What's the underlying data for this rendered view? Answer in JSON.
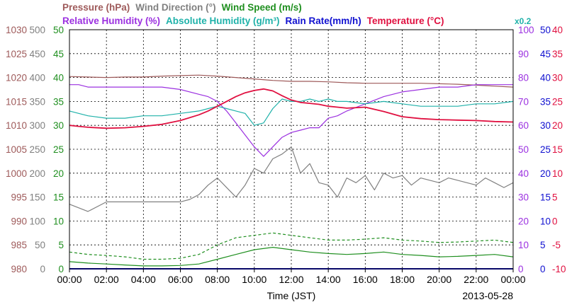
{
  "chart_data": {
    "type": "line",
    "x_axis": {
      "label": "Time (JST)",
      "date": "2013-05-28",
      "range_hours": [
        0,
        24
      ],
      "ticks": [
        "00:00",
        "02:00",
        "04:00",
        "06:00",
        "08:00",
        "10:00",
        "12:00",
        "14:00",
        "16:00",
        "18:00",
        "20:00",
        "22:00",
        "00:00"
      ]
    },
    "legend_row1": [
      {
        "text": "Pressure (hPa)",
        "color": "#9e5a5a"
      },
      {
        "text": "Wind Direction (°)",
        "color": "#808080"
      },
      {
        "text": "Wind Speed (m/s)",
        "color": "#1f8f1f"
      }
    ],
    "legend_row2": [
      {
        "text": "Relative Humidity (%)",
        "color": "#9b30e0"
      },
      {
        "text": "Absolute Humidity (g/m³)",
        "color": "#20b2aa"
      },
      {
        "text": "Rain Rate(mm/h)",
        "color": "#1010d0"
      },
      {
        "text": "Temperature (°C)",
        "color": "#e01040"
      }
    ],
    "rain_note": {
      "text": "x0.2",
      "color": "#20b2aa"
    },
    "grid": true,
    "axes": {
      "pressure": {
        "color": "#9e5a5a",
        "range": [
          980,
          1030
        ],
        "ticks": [
          "980",
          "985",
          "990",
          "995",
          "1000",
          "1005",
          "1010",
          "1015",
          "1020",
          "1025",
          "1030"
        ]
      },
      "wind_direction": {
        "color": "#808080",
        "range": [
          0,
          500
        ],
        "ticks": [
          "0",
          "50",
          "100",
          "150",
          "200",
          "250",
          "300",
          "350",
          "400",
          "450",
          "500"
        ]
      },
      "wind_speed": {
        "color": "#1f8f1f",
        "range": [
          0,
          50
        ],
        "ticks": [
          "0",
          "5",
          "10",
          "15",
          "20",
          "25",
          "30",
          "35",
          "40",
          "45",
          "50"
        ]
      },
      "humidity": {
        "color": "#9b30e0",
        "range": [
          0,
          100
        ],
        "ticks": [
          "0",
          "10",
          "20",
          "30",
          "40",
          "50",
          "60",
          "70",
          "80",
          "90",
          "100"
        ]
      },
      "rain": {
        "color": "#1010d0",
        "range": [
          0,
          50
        ],
        "ticks": [
          "0",
          "5",
          "10",
          "15",
          "20",
          "25",
          "30",
          "35",
          "40",
          "45",
          "50"
        ]
      },
      "temperature": {
        "color": "#e01040",
        "range": [
          -10,
          40
        ],
        "ticks": [
          "-10",
          "-5",
          "0",
          "5",
          "10",
          "15",
          "20",
          "25",
          "30",
          "35",
          "40"
        ]
      }
    },
    "series": [
      {
        "name": "Pressure (hPa)",
        "axis": "pressure",
        "color": "#9e5a5a",
        "x": [
          0,
          1,
          2,
          3,
          4,
          5,
          6,
          7,
          8,
          9,
          10,
          11,
          12,
          13,
          14,
          15,
          16,
          17,
          18,
          19,
          20,
          21,
          22,
          23,
          24
        ],
        "y": [
          1020.2,
          1020.1,
          1020.0,
          1020.1,
          1020.1,
          1020.3,
          1020.4,
          1020.5,
          1020.3,
          1020.0,
          1019.7,
          1019.4,
          1019.2,
          1019.2,
          1019.1,
          1018.9,
          1018.8,
          1018.8,
          1018.8,
          1018.8,
          1018.7,
          1018.6,
          1018.4,
          1018.2,
          1018.0
        ]
      },
      {
        "name": "Relative Humidity (%)",
        "axis": "humidity",
        "color": "#9b30e0",
        "x": [
          0,
          0.5,
          1,
          2,
          3,
          4,
          5,
          6,
          7,
          7.5,
          8,
          8.5,
          9,
          9.5,
          10,
          10.5,
          11,
          11.5,
          12,
          12.5,
          13,
          13.5,
          14,
          14.5,
          15,
          16,
          17,
          18,
          19,
          20,
          21,
          22,
          23,
          24
        ],
        "y": [
          77,
          77,
          76,
          76,
          76,
          76,
          76,
          75,
          73,
          72,
          70,
          66,
          61,
          56,
          51,
          47,
          51,
          55,
          57,
          58,
          59,
          59,
          63,
          64,
          66,
          69,
          72,
          74,
          75,
          76,
          76,
          77,
          77,
          77
        ]
      },
      {
        "name": "Absolute Humidity (g/m³)",
        "axis": "humidity",
        "color": "#20b2aa",
        "x": [
          0,
          0.5,
          1,
          2,
          3,
          4,
          5,
          6,
          7,
          7.5,
          8,
          8.5,
          9,
          9.5,
          10,
          10.5,
          11,
          11.5,
          12,
          12.5,
          13,
          13.5,
          14,
          14.5,
          15,
          16,
          17,
          18,
          19,
          20,
          21,
          22,
          23,
          24
        ],
        "y": [
          66,
          65,
          64,
          63,
          63,
          64,
          64,
          65,
          66,
          67,
          68,
          67,
          66,
          65,
          60,
          61,
          67,
          71,
          70,
          70,
          71,
          70,
          71,
          70,
          70,
          69,
          70,
          69,
          68,
          68,
          68,
          69,
          69,
          70
        ]
      },
      {
        "name": "Temperature (°C)",
        "axis": "temperature",
        "color": "#e01040",
        "x": [
          0,
          0.5,
          1,
          2,
          3,
          4,
          5,
          6,
          7,
          7.5,
          8,
          8.5,
          9,
          9.5,
          10,
          10.5,
          11,
          11.5,
          12,
          12.5,
          13,
          13.5,
          14,
          14.5,
          15,
          16,
          17,
          18,
          19,
          20,
          21,
          22,
          23,
          24
        ],
        "y": [
          20,
          19.8,
          19.6,
          19.4,
          19.5,
          19.8,
          20.2,
          21.0,
          22.2,
          23.0,
          24.0,
          25.0,
          26.0,
          26.8,
          27.3,
          27.6,
          27.2,
          26.2,
          25.3,
          24.8,
          24.6,
          24.4,
          24.0,
          23.8,
          23.6,
          23.8,
          22.9,
          21.8,
          21.4,
          21.2,
          21.1,
          21.0,
          20.8,
          20.7
        ]
      },
      {
        "name": "Wind Direction (°)",
        "axis": "wind_direction",
        "color": "#808080",
        "x": [
          0,
          1,
          2,
          3,
          4,
          5,
          6,
          6.5,
          7,
          7.5,
          8,
          8.5,
          9,
          9.5,
          10,
          10.5,
          11,
          11.5,
          12,
          12.5,
          13,
          13.5,
          14,
          14.5,
          15,
          15.5,
          16,
          16.5,
          17,
          17.5,
          18,
          18.5,
          19,
          19.5,
          20,
          20.5,
          21,
          21.5,
          22,
          22.5,
          23,
          23.5,
          24
        ],
        "y": [
          135,
          120,
          140,
          140,
          140,
          140,
          140,
          145,
          155,
          175,
          190,
          170,
          150,
          175,
          210,
          200,
          230,
          240,
          255,
          200,
          220,
          180,
          175,
          150,
          190,
          180,
          195,
          165,
          200,
          190,
          195,
          175,
          190,
          185,
          180,
          190,
          185,
          180,
          175,
          190,
          180,
          170,
          180
        ]
      },
      {
        "name": "Wind Speed (m/s)",
        "axis": "wind_speed",
        "color": "#1f8f1f",
        "x": [
          0,
          1,
          2,
          3,
          4,
          5,
          6,
          7,
          8,
          9,
          10,
          11,
          12,
          13,
          14,
          15,
          16,
          17,
          18,
          19,
          20,
          21,
          22,
          23,
          24
        ],
        "y": [
          1.5,
          1.2,
          1.0,
          0.8,
          0.6,
          0.6,
          0.7,
          1.0,
          2.0,
          3.0,
          4.0,
          4.5,
          4.0,
          3.5,
          3.2,
          3.0,
          3.2,
          3.5,
          3.0,
          2.8,
          2.5,
          2.6,
          2.8,
          3.0,
          2.5
        ]
      },
      {
        "name": "Wind Speed gust (m/s)",
        "axis": "wind_speed",
        "color": "#1f8f1f",
        "x": [
          0,
          1,
          2,
          3,
          4,
          5,
          6,
          7,
          8,
          9,
          10,
          11,
          12,
          13,
          14,
          15,
          16,
          17,
          18,
          19,
          20,
          21,
          22,
          23,
          24
        ],
        "y": [
          3.5,
          3.0,
          2.8,
          2.5,
          2.0,
          2.0,
          2.2,
          3.0,
          5.0,
          6.5,
          7.0,
          7.5,
          7.0,
          6.5,
          6.0,
          6.0,
          6.2,
          6.5,
          6.0,
          5.8,
          5.5,
          5.6,
          5.8,
          6.0,
          5.5
        ]
      },
      {
        "name": "Rain Rate(mm/h)",
        "axis": "rain",
        "color": "#1010d0",
        "x": [
          0,
          24
        ],
        "y": [
          0,
          0
        ]
      }
    ]
  }
}
